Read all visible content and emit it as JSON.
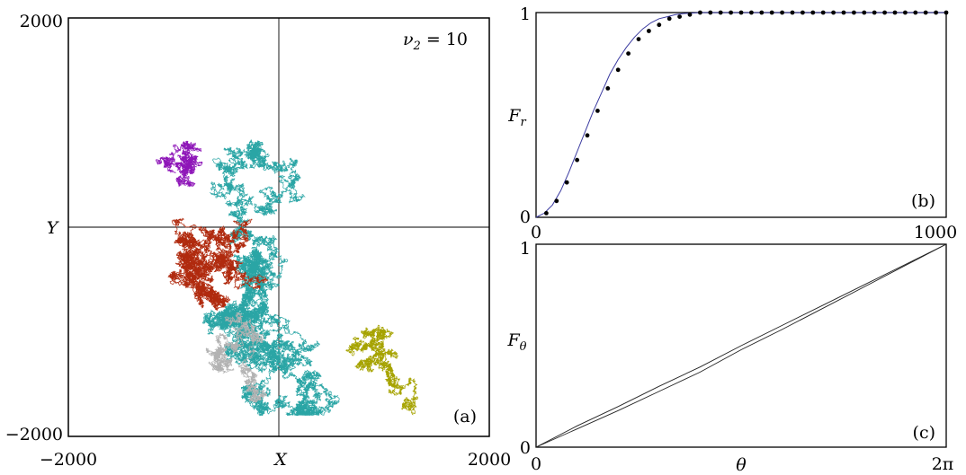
{
  "chart_data": [
    {
      "panel": "(a)",
      "type": "scatter",
      "xlabel": "X",
      "ylabel": "Y",
      "xlim": [
        -2000,
        2000
      ],
      "ylim": [
        -2000,
        2000
      ],
      "tick_labels": {
        "x_min": "−2000",
        "x_max": "2000",
        "y_min": "−2000",
        "y_max": "2000"
      },
      "annotation": "ν2 = 10",
      "grid": "axes-through-origin",
      "series": [
        {
          "color": "#2aa5a5",
          "seed": 7,
          "steps": 26000,
          "step": 13,
          "start": [
            -150,
            150
          ]
        },
        {
          "color": "#b02a0e",
          "seed": 19,
          "steps": 9000,
          "step": 14,
          "start": [
            -400,
            -200
          ]
        },
        {
          "color": "#8e16b8",
          "seed": 31,
          "steps": 2600,
          "step": 11,
          "start": [
            -900,
            400
          ]
        },
        {
          "color": "#a6a300",
          "seed": 43,
          "steps": 4200,
          "step": 11,
          "start": [
            800,
            -1200
          ]
        },
        {
          "color": "#b2b2b2",
          "seed": 57,
          "steps": 3200,
          "step": 12,
          "start": [
            -300,
            -1500
          ]
        }
      ]
    },
    {
      "panel": "(b)",
      "type": "line",
      "ylabel": "Fr",
      "xlim": [
        0,
        1000
      ],
      "ylim": [
        0,
        1
      ],
      "tick_labels": {
        "x_min": "0",
        "x_max": "1000",
        "y_min": "0",
        "y_max": "1"
      },
      "curve_color": "#3a3aa0",
      "points_x": [
        25,
        50,
        75,
        100,
        125,
        150,
        175,
        200,
        225,
        250,
        275,
        300,
        325,
        350,
        375,
        400,
        425,
        450,
        475,
        500,
        525,
        550,
        575,
        600,
        625,
        650,
        675,
        700,
        725,
        750,
        775,
        800,
        825,
        850,
        875,
        900,
        925,
        950,
        975,
        1000
      ],
      "points_y": [
        0.02,
        0.08,
        0.17,
        0.28,
        0.4,
        0.52,
        0.63,
        0.72,
        0.8,
        0.87,
        0.91,
        0.94,
        0.97,
        0.98,
        0.99,
        1.0,
        1.0,
        1.0,
        1.0,
        1.0,
        1.0,
        1.0,
        1.0,
        1.0,
        1.0,
        1.0,
        1.0,
        1.0,
        1.0,
        1.0,
        1.0,
        1.0,
        1.0,
        1.0,
        1.0,
        1.0,
        1.0,
        1.0,
        1.0,
        1.0
      ],
      "curve_x": [
        0,
        20,
        40,
        60,
        80,
        100,
        120,
        140,
        160,
        180,
        200,
        220,
        240,
        260,
        280,
        300,
        320,
        340,
        360,
        380,
        400,
        450,
        500,
        600,
        700,
        800,
        900,
        1000
      ],
      "curve_y": [
        0,
        0.02,
        0.06,
        0.13,
        0.22,
        0.32,
        0.42,
        0.52,
        0.61,
        0.7,
        0.77,
        0.83,
        0.88,
        0.92,
        0.95,
        0.97,
        0.98,
        0.99,
        0.995,
        0.998,
        1.0,
        1.0,
        1.0,
        1.0,
        1.0,
        1.0,
        1.0,
        1.0
      ]
    },
    {
      "panel": "(c)",
      "type": "line",
      "xlabel": "θ",
      "ylabel": "Fθ",
      "xlim": [
        0,
        6.2832
      ],
      "ylim": [
        0,
        1
      ],
      "tick_labels": {
        "x_min": "0",
        "x_max": "2π",
        "y_min": "0",
        "y_max": "1"
      },
      "series": [
        {
          "x": [
            0,
            0.6283,
            1.2566,
            1.885,
            2.5133,
            3.1416,
            3.7699,
            4.3982,
            5.0265,
            5.6549,
            6.2832
          ],
          "y": [
            0,
            0.09,
            0.18,
            0.275,
            0.37,
            0.48,
            0.58,
            0.685,
            0.79,
            0.895,
            1.0
          ]
        },
        {
          "x": [
            0,
            0.6283,
            1.2566,
            1.885,
            2.5133,
            3.1416,
            3.7699,
            4.3982,
            5.0265,
            5.6549,
            6.2832
          ],
          "y": [
            0,
            0.105,
            0.2,
            0.3,
            0.395,
            0.5,
            0.6,
            0.7,
            0.8,
            0.9,
            1.0
          ]
        }
      ]
    }
  ]
}
